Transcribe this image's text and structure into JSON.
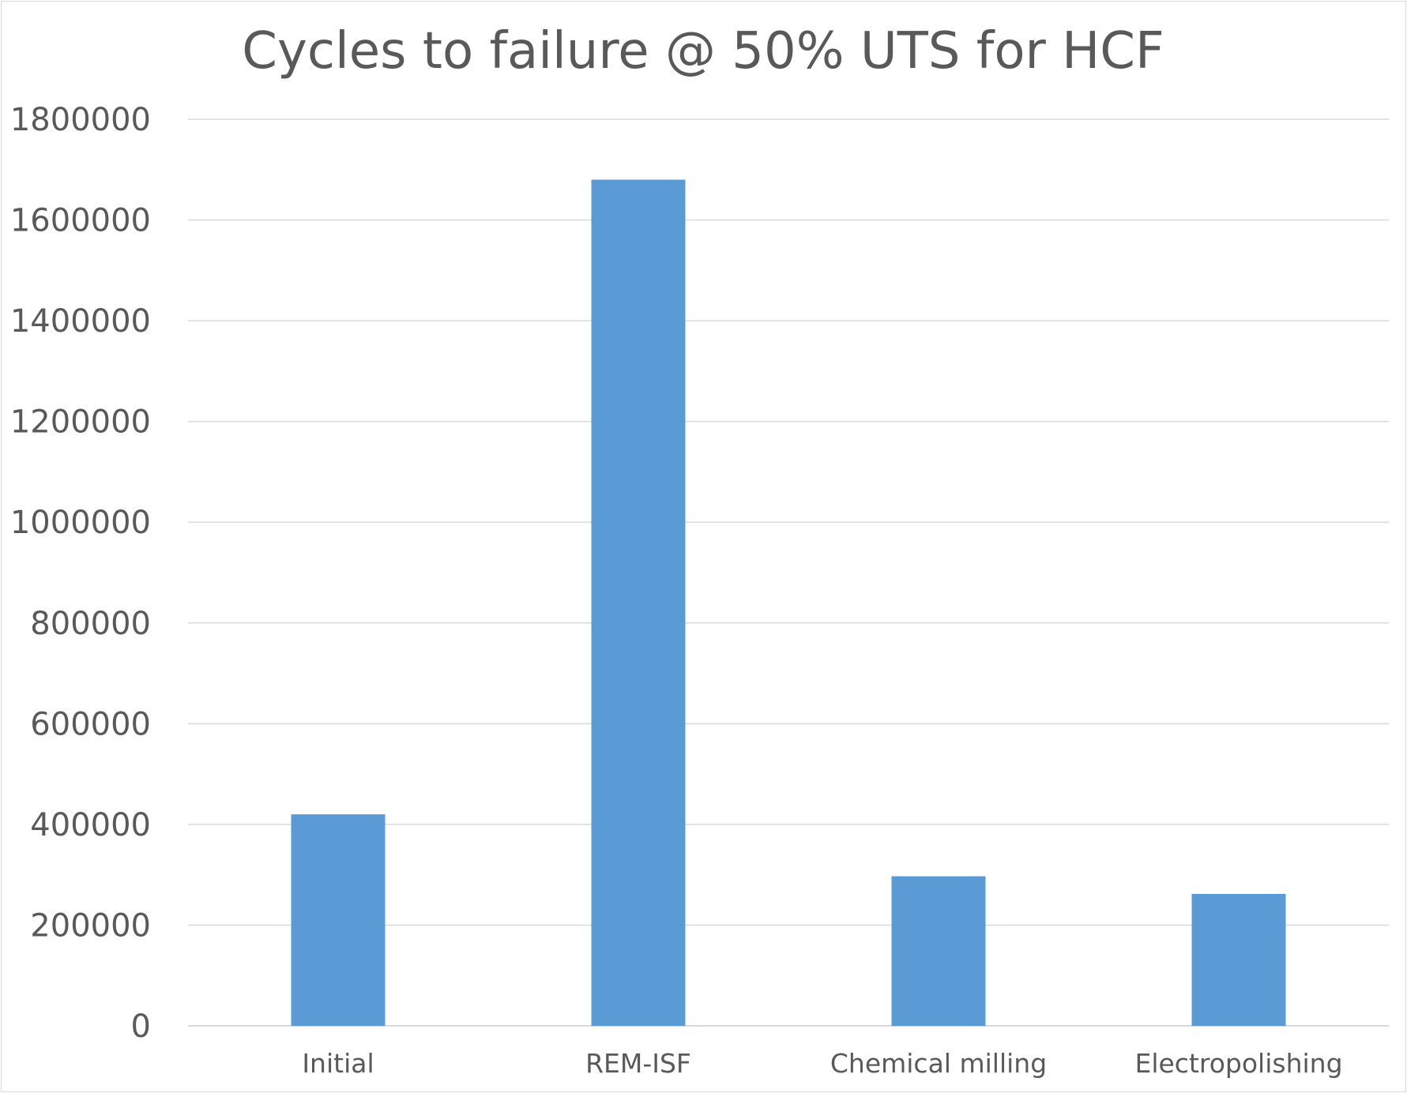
{
  "chart_data": {
    "type": "bar",
    "title": "Cycles to failure @ 50% UTS for HCF",
    "xlabel": "",
    "ylabel": "",
    "categories": [
      "Initial",
      "REM-ISF",
      "Chemical milling",
      "Electropolishing"
    ],
    "values": [
      420000,
      1680000,
      297000,
      262000
    ],
    "ylim": [
      0,
      1800000
    ],
    "yticks": [
      "0",
      "200000",
      "400000",
      "600000",
      "800000",
      "1000000",
      "1200000",
      "1400000",
      "1600000",
      "1800000"
    ],
    "grid": true,
    "legend": "none",
    "bar_color": "#5b9bd5"
  }
}
